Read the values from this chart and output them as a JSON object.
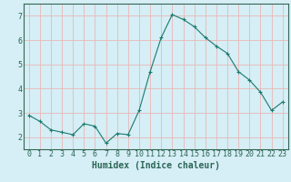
{
  "x": [
    0,
    1,
    2,
    3,
    4,
    5,
    6,
    7,
    8,
    9,
    10,
    11,
    12,
    13,
    14,
    15,
    16,
    17,
    18,
    19,
    20,
    21,
    22,
    23
  ],
  "y": [
    2.9,
    2.65,
    2.3,
    2.2,
    2.1,
    2.55,
    2.45,
    1.75,
    2.15,
    2.1,
    3.1,
    4.7,
    6.1,
    7.05,
    6.85,
    6.55,
    6.1,
    5.75,
    5.45,
    4.7,
    4.35,
    3.85,
    3.1,
    3.45
  ],
  "line_color": "#1a7a6e",
  "marker": "+",
  "marker_size": 3,
  "bg_color": "#d6eef5",
  "grid_color": "#e8b8b8",
  "xlabel": "Humidex (Indice chaleur)",
  "xlim": [
    -0.5,
    23.5
  ],
  "ylim": [
    1.5,
    7.5
  ],
  "yticks": [
    2,
    3,
    4,
    5,
    6,
    7
  ],
  "xticks": [
    0,
    1,
    2,
    3,
    4,
    5,
    6,
    7,
    8,
    9,
    10,
    11,
    12,
    13,
    14,
    15,
    16,
    17,
    18,
    19,
    20,
    21,
    22,
    23
  ],
  "xlabel_fontsize": 7,
  "tick_fontsize": 6,
  "axis_color": "#2a6655",
  "spine_color": "#336655"
}
